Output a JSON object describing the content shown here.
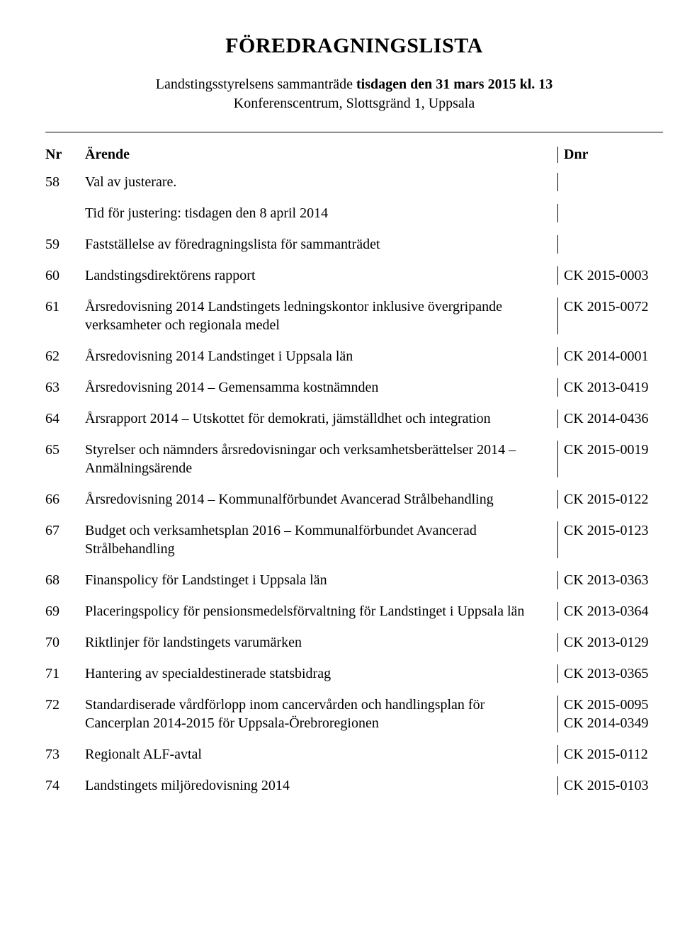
{
  "title": "FÖREDRAGNINGSLISTA",
  "subtitle_prefix": "Landstingsstyrelsens sammanträde ",
  "subtitle_bold": "tisdagen den 31 mars 2015 kl. 13",
  "subtitle_line2": "Konferenscentrum, Slottsgränd 1, Uppsala",
  "header": {
    "nr": "Nr",
    "arende": "Ärende",
    "dnr": "Dnr"
  },
  "rows": [
    {
      "nr": "58",
      "arende": "Val av justerare.",
      "dnr": ""
    },
    {
      "nr": "",
      "arende": "Tid för justering: tisdagen den 8 april 2014",
      "dnr": ""
    },
    {
      "nr": "59",
      "arende": "Fastställelse av föredragningslista för sammanträdet",
      "dnr": ""
    },
    {
      "nr": "60",
      "arende": "Landstingsdirektörens rapport",
      "dnr": "CK 2015-0003"
    },
    {
      "nr": "61",
      "arende": "Årsredovisning 2014 Landstingets ledningskontor inklusive övergripande verksamheter och regionala medel",
      "dnr": "CK 2015-0072"
    },
    {
      "nr": "62",
      "arende": "Årsredovisning 2014 Landstinget i Uppsala län",
      "dnr": "CK 2014-0001"
    },
    {
      "nr": "63",
      "arende": "Årsredovisning 2014 – Gemensamma kostnämnden",
      "dnr": "CK 2013-0419"
    },
    {
      "nr": "64",
      "arende": "Årsrapport 2014 – Utskottet för demokrati, jämställdhet och integration",
      "dnr": "CK 2014-0436"
    },
    {
      "nr": "65",
      "arende": "Styrelser och nämnders årsredovisningar och verksamhetsberättelser 2014 – Anmälningsärende",
      "dnr": "CK 2015-0019"
    },
    {
      "nr": "66",
      "arende": "Årsredovisning 2014 – Kommunalförbundet Avancerad Strålbehandling",
      "dnr": "CK 2015-0122"
    },
    {
      "nr": "67",
      "arende": "Budget och verksamhetsplan 2016 – Kommunalförbundet Avancerad Strålbehandling",
      "dnr": "CK 2015-0123"
    },
    {
      "nr": "68",
      "arende": "Finanspolicy för Landstinget i Uppsala län",
      "dnr": "CK 2013-0363"
    },
    {
      "nr": "69",
      "arende": "Placeringspolicy för pensionsmedelsförvaltning för Landstinget i Uppsala län",
      "dnr": "CK 2013-0364"
    },
    {
      "nr": "70",
      "arende": "Riktlinjer för landstingets varumärken",
      "dnr": "CK 2013-0129"
    },
    {
      "nr": "71",
      "arende": "Hantering av specialdestinerade statsbidrag",
      "dnr": "CK 2013-0365"
    },
    {
      "nr": "72",
      "arende": "Standardiserade vårdförlopp inom cancervården och handlingsplan för Cancerplan 2014-2015 för Uppsala-Örebroregionen",
      "dnr": "CK 2015-0095\nCK 2014-0349"
    },
    {
      "nr": "73",
      "arende": "Regionalt ALF-avtal",
      "dnr": "CK 2015-0112"
    },
    {
      "nr": "74",
      "arende": "Landstingets miljöredovisning 2014",
      "dnr": "CK 2015-0103"
    }
  ]
}
